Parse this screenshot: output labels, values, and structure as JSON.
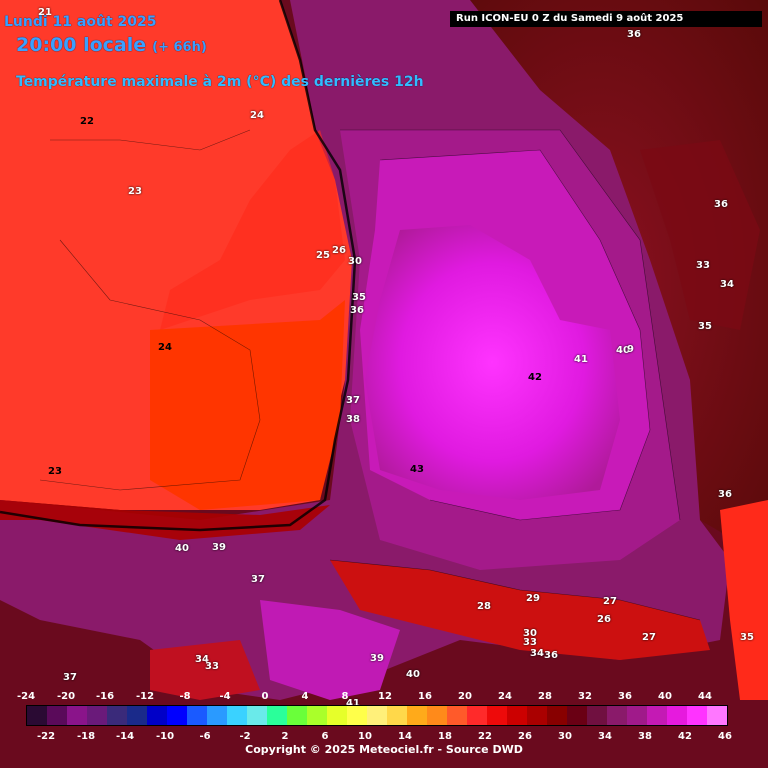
{
  "header": {
    "date": "Lundi 11 août 2025",
    "time": "20:00 locale",
    "lead": "(+ 66h)",
    "variable": "Température maximale à 2m (°C) des dernières 12h",
    "run": "Run ICON-EU 0 Z du Samedi 9 août 2025"
  },
  "map_labels": [
    "21",
    "22",
    "24",
    "23",
    "25",
    "26",
    "30",
    "35",
    "36",
    "24",
    "37",
    "38",
    "43",
    "42",
    "41",
    "40",
    "9",
    "36",
    "33",
    "34",
    "35",
    "36",
    "23",
    "40",
    "39",
    "37",
    "29",
    "28",
    "27",
    "26",
    "27",
    "30",
    "33",
    "34",
    "36",
    "39",
    "40",
    "41",
    "34",
    "33",
    "37",
    "36",
    "35"
  ],
  "legend": {
    "top_ticks": [
      "-24",
      "-20",
      "-16",
      "-12",
      "-8",
      "-4",
      "0",
      "4",
      "8",
      "12",
      "16",
      "20",
      "24",
      "28",
      "32",
      "36",
      "40",
      "44"
    ],
    "bottom_ticks": [
      "-22",
      "-18",
      "-14",
      "-10",
      "-6",
      "-2",
      "2",
      "6",
      "10",
      "14",
      "18",
      "22",
      "26",
      "30",
      "34",
      "38",
      "42",
      "46"
    ],
    "colors": [
      "#2a0a33",
      "#5a0a5a",
      "#8a148a",
      "#6a1a7a",
      "#3a2a7a",
      "#1a2a8a",
      "#0000c8",
      "#0000ff",
      "#1a5aff",
      "#2a9aff",
      "#3ad2ff",
      "#6aeaea",
      "#2aff9a",
      "#6aff3a",
      "#aaff2a",
      "#e6ff2a",
      "#ffff4a",
      "#fff07a",
      "#ffd84a",
      "#ffaa1a",
      "#ff8a1a",
      "#ff5a2a",
      "#ff2a2a",
      "#ee0a0a",
      "#cc0000",
      "#aa0000",
      "#880000",
      "#6a0014",
      "#701040",
      "#8a1a6a",
      "#a01a8a",
      "#c41ab4",
      "#e61ade",
      "#ff33ff",
      "#ff77ff"
    ]
  },
  "copyright": "Copyright © 2025 Meteociel.fr - Source DWD"
}
